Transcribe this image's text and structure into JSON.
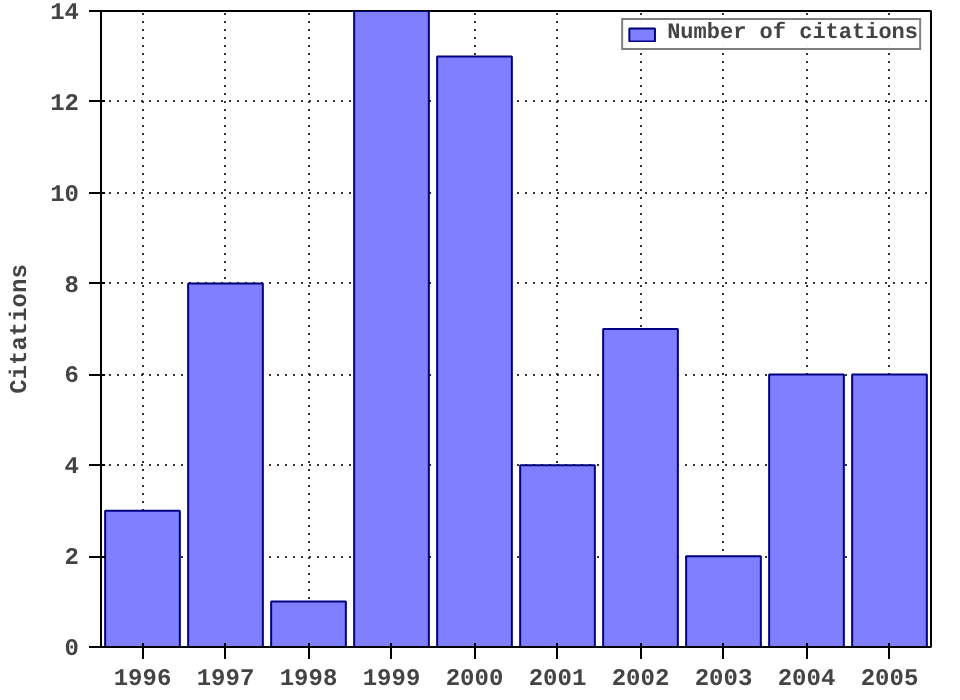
{
  "chart_data": {
    "type": "bar",
    "ylabel": "Citations",
    "x": [
      1996,
      1997,
      1998,
      1999,
      2000,
      2001,
      2002,
      2003,
      2004,
      2005
    ],
    "series": [
      {
        "name": "Number of citations",
        "color": "#7f7fff",
        "values": [
          3,
          8,
          1,
          14,
          13,
          4,
          7,
          2,
          6,
          6
        ]
      }
    ],
    "xlim": [
      1995.5,
      2005.5
    ],
    "xticks": [
      1996,
      1997,
      1998,
      1999,
      2000,
      2001,
      2002,
      2003,
      2004,
      2005
    ],
    "ylim": [
      0,
      14
    ],
    "yticks": [
      0,
      2,
      4,
      6,
      8,
      10,
      12,
      14
    ],
    "grid": true,
    "legend": "top right"
  }
}
